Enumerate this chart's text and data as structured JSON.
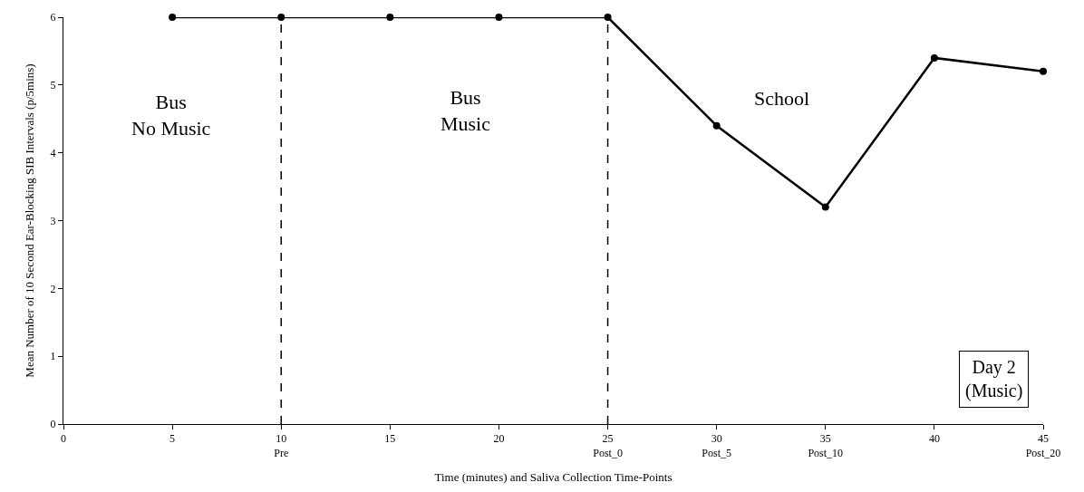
{
  "chart_data": {
    "type": "line",
    "xlabel": "Time (minutes) and Saliva Collection Time-Points",
    "ylabel": "Mean Number of 10 Second Ear-Blocking SIB Intervals (p/5mins)",
    "x": [
      5,
      10,
      15,
      20,
      25,
      30,
      35,
      40,
      45
    ],
    "series": [
      {
        "color": "#000000",
        "values": [
          6,
          6,
          6,
          6,
          6,
          4.4,
          3.2,
          5.4,
          5.2
        ]
      }
    ],
    "xlim": [
      0,
      45
    ],
    "ylim": [
      0,
      6
    ],
    "xticks": [
      0,
      5,
      {
        "value": 10,
        "label": "10\nPre"
      },
      15,
      20,
      {
        "value": 25,
        "label": "25\nPost_0"
      },
      {
        "value": 30,
        "label": "30\nPost_5"
      },
      {
        "value": 35,
        "label": "35\nPost_10"
      },
      40,
      {
        "value": 45,
        "label": "45\nPost_20"
      }
    ],
    "yticks": [
      0,
      1,
      2,
      3,
      4,
      5,
      6
    ],
    "ref_lines": [
      {
        "axis": "x",
        "value": 10,
        "label": null,
        "color": "#000000",
        "line_style": "dashed"
      },
      {
        "axis": "x",
        "value": 25,
        "label": null,
        "color": "#000000",
        "line_style": "dashed"
      }
    ],
    "annotations": [
      "Bus\nNo Music",
      "Bus\nMusic",
      "School",
      "Day 2\n(Music)"
    ],
    "legend": false,
    "marker": "circle",
    "line_style": "solid"
  }
}
